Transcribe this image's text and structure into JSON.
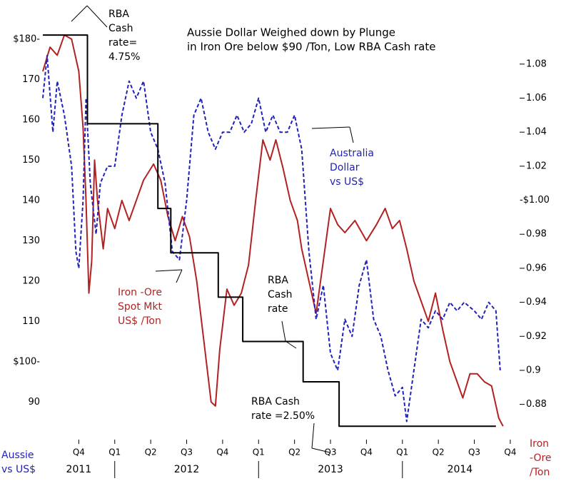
{
  "chart_data": {
    "type": "line",
    "title": [
      "Aussie Dollar Weighed down by Plunge",
      "in Iron Ore below $90 /Ton, Low RBA Cash rate"
    ],
    "xlim": [
      2011.5,
      2014.8
    ],
    "xticks": [
      {
        "value": 2011.75,
        "label": "Q4"
      },
      {
        "value": 2012.0,
        "label": "Q1"
      },
      {
        "value": 2012.25,
        "label": "Q2"
      },
      {
        "value": 2012.5,
        "label": "Q3"
      },
      {
        "value": 2012.75,
        "label": "Q4"
      },
      {
        "value": 2013.0,
        "label": "Q1"
      },
      {
        "value": 2013.25,
        "label": "Q2"
      },
      {
        "value": 2013.5,
        "label": "Q3"
      },
      {
        "value": 2013.75,
        "label": "Q4"
      },
      {
        "value": 2014.0,
        "label": "Q1"
      },
      {
        "value": 2014.25,
        "label": "Q2"
      },
      {
        "value": 2014.5,
        "label": "Q3"
      },
      {
        "value": 2014.75,
        "label": "Q4"
      }
    ],
    "year_labels": [
      "2011",
      "2012",
      "2013",
      "2014"
    ],
    "ylim": [
      83.5,
      183.5
    ],
    "yticks": [
      90,
      {
        "value": 100,
        "label": "$100-"
      },
      110,
      120,
      130,
      140,
      150,
      160,
      170,
      {
        "value": 180,
        "label": "$180-"
      }
    ],
    "y2lim": [
      0.866,
      1.103
    ],
    "y2ticks": [
      0.88,
      0.9,
      0.92,
      0.94,
      0.96,
      0.98,
      {
        "value": 1.0,
        "label": "-$1.00"
      },
      1.02,
      1.04,
      1.06,
      1.08
    ],
    "ylabel": [
      "Iron",
      "-Ore",
      "/Ton"
    ],
    "y2label": [
      "Aussie",
      "vs US$"
    ],
    "series": [
      {
        "name": "Iron -Ore Spot Mkt US$ /Ton",
        "color": "#b22222",
        "style": "solid",
        "x": [
          2011.5,
          2011.55,
          2011.6,
          2011.65,
          2011.7,
          2011.75,
          2011.78,
          2011.8,
          2011.82,
          2011.84,
          2011.86,
          2011.88,
          2011.92,
          2011.95,
          2012.0,
          2012.05,
          2012.1,
          2012.15,
          2012.2,
          2012.27,
          2012.32,
          2012.37,
          2012.42,
          2012.47,
          2012.52,
          2012.57,
          2012.62,
          2012.67,
          2012.7,
          2012.73,
          2012.78,
          2012.83,
          2012.88,
          2012.93,
          2012.98,
          2013.03,
          2013.08,
          2013.12,
          2013.17,
          2013.22,
          2013.27,
          2013.3,
          2013.35,
          2013.4,
          2013.45,
          2013.5,
          2013.55,
          2013.6,
          2013.67,
          2013.75,
          2013.82,
          2013.88,
          2013.93,
          2013.98,
          2014.03,
          2014.08,
          2014.13,
          2014.18,
          2014.23,
          2014.28,
          2014.33,
          2014.38,
          2014.42,
          2014.47,
          2014.52,
          2014.57,
          2014.62,
          2014.67,
          2014.7
        ],
        "values": [
          172,
          178,
          176,
          181,
          180,
          172,
          158,
          140,
          117,
          125,
          150,
          140,
          128,
          138,
          133,
          140,
          135,
          140,
          145,
          149,
          145,
          136,
          130,
          136,
          131,
          120,
          105,
          90,
          89,
          103,
          118,
          114,
          117,
          124,
          140,
          155,
          150,
          155,
          148,
          140,
          135,
          128,
          120,
          112,
          125,
          138,
          134,
          132,
          135,
          130,
          134,
          138,
          133,
          135,
          128,
          120,
          115,
          110,
          117,
          108,
          100,
          95,
          91,
          97,
          97,
          95,
          94,
          86,
          84
        ]
      },
      {
        "name": "Australia Dollar vs US$",
        "color": "#2222bb",
        "style": "dashed",
        "axis": "y2",
        "x": [
          2011.5,
          2011.53,
          2011.57,
          2011.6,
          2011.65,
          2011.7,
          2011.73,
          2011.75,
          2011.78,
          2011.8,
          2011.83,
          2011.87,
          2011.9,
          2011.95,
          2012.0,
          2012.05,
          2012.1,
          2012.15,
          2012.2,
          2012.25,
          2012.3,
          2012.35,
          2012.4,
          2012.45,
          2012.5,
          2012.55,
          2012.6,
          2012.65,
          2012.7,
          2012.75,
          2012.8,
          2012.85,
          2012.9,
          2012.95,
          2013.0,
          2013.05,
          2013.1,
          2013.15,
          2013.2,
          2013.25,
          2013.3,
          2013.35,
          2013.4,
          2013.45,
          2013.5,
          2013.55,
          2013.6,
          2013.65,
          2013.7,
          2013.75,
          2013.8,
          2013.85,
          2013.9,
          2013.95,
          2014.0,
          2014.03,
          2014.08,
          2014.13,
          2014.18,
          2014.23,
          2014.28,
          2014.33,
          2014.38,
          2014.43,
          2014.5,
          2014.55,
          2014.6,
          2014.65,
          2014.68
        ],
        "values": [
          1.06,
          1.085,
          1.04,
          1.07,
          1.05,
          1.02,
          0.97,
          0.96,
          1.0,
          1.06,
          1.01,
          0.98,
          1.01,
          1.02,
          1.02,
          1.05,
          1.07,
          1.06,
          1.07,
          1.04,
          1.03,
          1.01,
          0.97,
          0.965,
          1.0,
          1.05,
          1.06,
          1.04,
          1.03,
          1.04,
          1.04,
          1.05,
          1.04,
          1.045,
          1.06,
          1.04,
          1.05,
          1.04,
          1.04,
          1.05,
          1.03,
          0.97,
          0.93,
          0.95,
          0.91,
          0.9,
          0.93,
          0.92,
          0.95,
          0.965,
          0.93,
          0.92,
          0.9,
          0.885,
          0.89,
          0.87,
          0.9,
          0.93,
          0.925,
          0.935,
          0.93,
          0.94,
          0.935,
          0.94,
          0.935,
          0.93,
          0.94,
          0.935,
          0.9
        ]
      },
      {
        "name": "RBA Cash rate",
        "color": "#000000",
        "style": "step",
        "x": [
          2011.5,
          2011.81,
          2012.3,
          2012.39,
          2012.72,
          2012.89,
          2013.31,
          2013.56,
          2014.65
        ],
        "values": [
          181,
          159,
          138,
          127,
          116,
          105,
          95,
          84,
          84
        ]
      }
    ],
    "annotations": [
      [
        "RBA",
        "Cash",
        "rate=",
        "4.75%"
      ],
      [
        "Australia",
        "Dollar",
        "vs US$"
      ],
      [
        "Iron -Ore",
        "Spot Mkt",
        "US$ /Ton"
      ],
      [
        "RBA",
        "Cash",
        "rate"
      ],
      [
        "RBA Cash",
        "rate =2.50%"
      ]
    ]
  }
}
